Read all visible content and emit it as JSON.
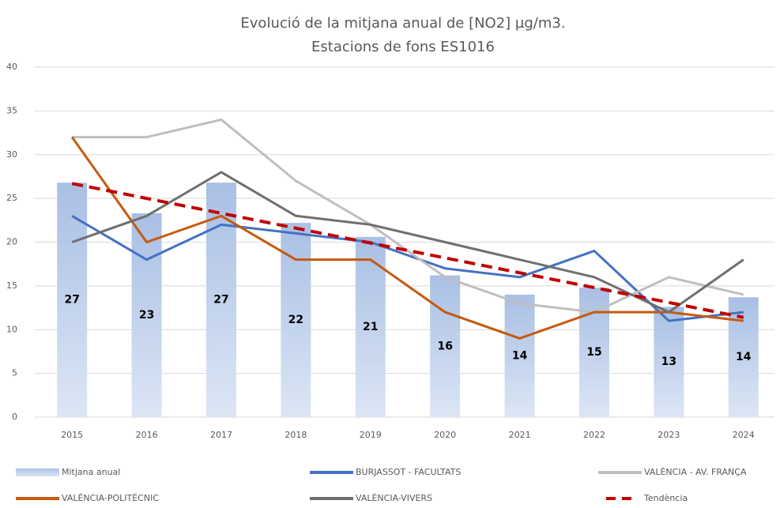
{
  "chart_data": {
    "type": "combo",
    "title": "Evolució de la mitjana anual de [NO2] µg/m3.",
    "subtitle": "Estacions de fons ES1016",
    "categories": [
      "2015",
      "2016",
      "2017",
      "2018",
      "2019",
      "2020",
      "2021",
      "2022",
      "2023",
      "2024"
    ],
    "ylim": [
      0,
      40
    ],
    "yticks": [
      0,
      5,
      10,
      15,
      20,
      25,
      30,
      35,
      40
    ],
    "grid": true,
    "series": [
      {
        "name": "Mitjana anual",
        "type": "bar",
        "color": "#b4c7e7",
        "values": [
          26.8,
          23.3,
          26.8,
          22.2,
          20.6,
          16.2,
          14,
          14.8,
          12.6,
          13.7
        ],
        "value_labels": [
          "27",
          "23",
          "27",
          "22",
          "21",
          "16",
          "14",
          "15",
          "13",
          "14"
        ]
      },
      {
        "name": "BURJASSOT - FACULTATS",
        "type": "line",
        "color": "#4472c4",
        "values": [
          23,
          18,
          22,
          21,
          20,
          17,
          16,
          19,
          11,
          12
        ]
      },
      {
        "name": "VALÈNCIA - AV. FRANÇA",
        "type": "line",
        "color": "#bfbfbf",
        "values": [
          32,
          32,
          34,
          27,
          22,
          16,
          13,
          12,
          16,
          14
        ]
      },
      {
        "name": "VALÈNCIA-POLITÈCNIC",
        "type": "line",
        "color": "#c55a11",
        "values": [
          32,
          20,
          23,
          18,
          18,
          12,
          9,
          12,
          12,
          11
        ]
      },
      {
        "name": "VALÈNCIA-VIVERS",
        "type": "line",
        "color": "#6f6f6f",
        "values": [
          20,
          23,
          28,
          23,
          22,
          20,
          18,
          16,
          12,
          18
        ]
      },
      {
        "name": "Tendència",
        "type": "line",
        "color": "#c00000",
        "dashed": true,
        "values": [
          26.7,
          25.0,
          23.3,
          21.6,
          19.9,
          18.2,
          16.5,
          14.8,
          13.1,
          11.4
        ]
      }
    ]
  }
}
